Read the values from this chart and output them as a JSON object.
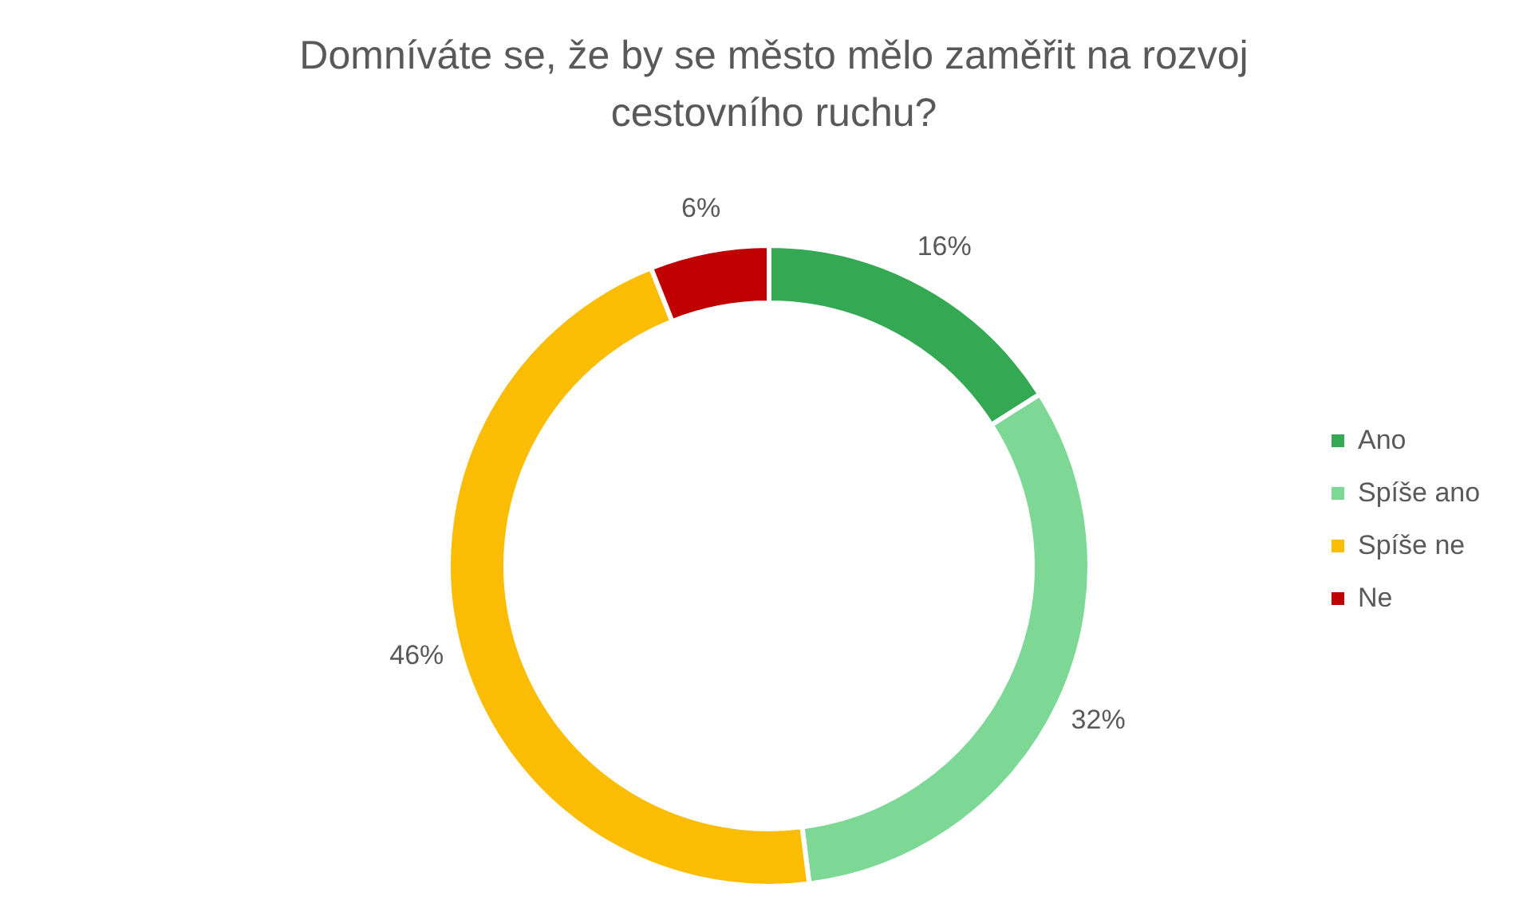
{
  "chart_data": {
    "type": "donut",
    "title": "Domníváte se, že by se město mělo zaměřit na rozvoj cestovního ruchu?",
    "categories": [
      "Ano",
      "Spíše ano",
      "Spíše ne",
      "Ne"
    ],
    "values": [
      16,
      32,
      46,
      6
    ],
    "value_labels": [
      "16%",
      "32%",
      "46%",
      "6%"
    ],
    "colors": [
      "#34a853",
      "#7ed895",
      "#fbbc04",
      "#c00000"
    ],
    "legend": "right"
  }
}
